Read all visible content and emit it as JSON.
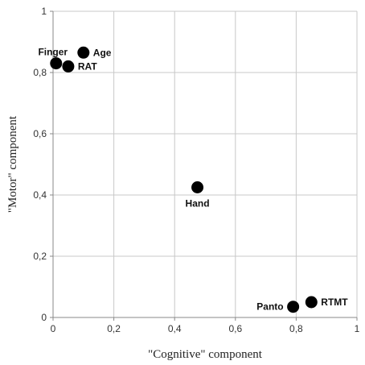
{
  "chart_data": {
    "type": "scatter",
    "title": "",
    "xlabel": "\"Cognitive\" component",
    "ylabel": "\"Motor\" component",
    "xlim": [
      0,
      1
    ],
    "ylim": [
      0,
      1
    ],
    "x_ticks": [
      "0",
      "0,2",
      "0,4",
      "0,6",
      "0,8",
      "1"
    ],
    "y_ticks": [
      "0",
      "0,2",
      "0,4",
      "0,6",
      "0,8",
      "1"
    ],
    "x_tick_values": [
      0,
      0.2,
      0.4,
      0.6,
      0.8,
      1
    ],
    "y_tick_values": [
      0,
      0.2,
      0.4,
      0.6,
      0.8,
      1
    ],
    "grid": true,
    "legend": "none",
    "point_color": "#000000",
    "points": [
      {
        "label": "Finger",
        "x": 0.01,
        "y": 0.83,
        "label_pos": "above-left"
      },
      {
        "label": "Age",
        "x": 0.1,
        "y": 0.865,
        "label_pos": "right"
      },
      {
        "label": "RAT",
        "x": 0.05,
        "y": 0.82,
        "label_pos": "right"
      },
      {
        "label": "Hand",
        "x": 0.475,
        "y": 0.425,
        "label_pos": "below"
      },
      {
        "label": "Panto",
        "x": 0.79,
        "y": 0.035,
        "label_pos": "left"
      },
      {
        "label": "RTMT",
        "x": 0.85,
        "y": 0.05,
        "label_pos": "right"
      }
    ]
  }
}
